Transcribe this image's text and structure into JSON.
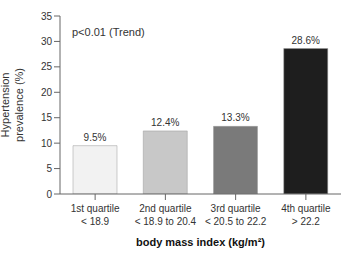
{
  "chart_data": {
    "type": "bar",
    "categories": [
      "1st quartile\n< 18.9",
      "2nd quartile\n< 18.9 to 20.4",
      "3rd quartile\n< 20.5 to 22.2",
      "4th quartile\n> 22.2"
    ],
    "values": [
      9.5,
      12.4,
      13.3,
      28.6
    ],
    "value_labels": [
      "9.5%",
      "12.4%",
      "13.3%",
      "28.6%"
    ],
    "data_labels": true,
    "colors": [
      "#f2f2f2",
      "#c8c8c8",
      "#7a7a7a",
      "#1e1e1e"
    ],
    "x_label": "body mass index (kg/m²)",
    "y_label": "Hypertension\nprevalence (%)",
    "annotation": "p<0.01 (Trend)",
    "ylim": [
      0,
      35
    ],
    "yticks": [
      0,
      5,
      10,
      15,
      20,
      25,
      30,
      35
    ],
    "grid": false
  }
}
